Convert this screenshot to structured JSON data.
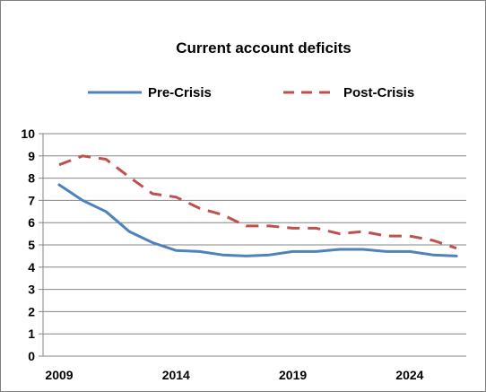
{
  "chart_data": {
    "type": "line",
    "title": "Current account deficits",
    "xlabel": "",
    "ylabel": "",
    "x": [
      2009,
      2010,
      2011,
      2012,
      2013,
      2014,
      2015,
      2016,
      2017,
      2018,
      2019,
      2020,
      2021,
      2022,
      2023,
      2024,
      2025,
      2026
    ],
    "xticks": [
      "2009",
      "2014",
      "2019",
      "2024"
    ],
    "xlim": [
      2009,
      2026
    ],
    "yticks": [
      "0",
      "1",
      "2",
      "3",
      "4",
      "5",
      "6",
      "7",
      "8",
      "9",
      "10"
    ],
    "ylim": [
      0,
      10
    ],
    "grid": true,
    "legend_position": "top",
    "series": [
      {
        "name": "Pre-Crisis",
        "color": "#4f81bd",
        "dash": "solid",
        "values": [
          7.7,
          7.0,
          6.5,
          5.6,
          5.1,
          4.75,
          4.7,
          4.55,
          4.5,
          4.55,
          4.7,
          4.7,
          4.8,
          4.8,
          4.7,
          4.7,
          4.55,
          4.5
        ]
      },
      {
        "name": "Post-Crisis",
        "color": "#c0504d",
        "dash": "dashed",
        "values": [
          8.6,
          9.0,
          8.85,
          8.05,
          7.3,
          7.15,
          6.65,
          6.35,
          5.85,
          5.85,
          5.75,
          5.75,
          5.5,
          5.6,
          5.4,
          5.4,
          5.2,
          4.85
        ]
      }
    ]
  }
}
